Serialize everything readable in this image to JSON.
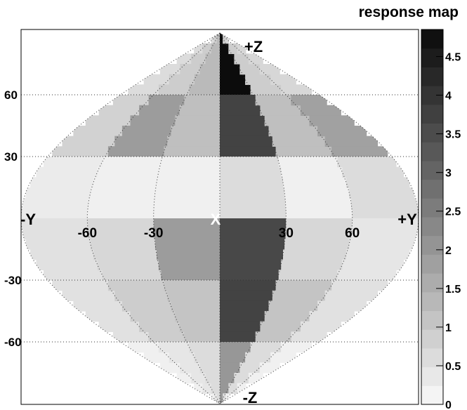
{
  "chart_data": {
    "type": "heatmap",
    "title": "response map",
    "projection": "sinusoidal (equal-area) sky map",
    "colormap": "grayscale",
    "grid": "dotted",
    "legend_position": "right",
    "colorbar": {
      "min": 0,
      "max": 4.85,
      "levels": 20,
      "tick_labels": [
        "0",
        "0.5",
        "1",
        "1.5",
        "2",
        "2.5",
        "3",
        "3.5",
        "4",
        "4.5"
      ],
      "tick_values": [
        0,
        0.5,
        1,
        1.5,
        2,
        2.5,
        3,
        3.5,
        4,
        4.5
      ]
    },
    "x_tick_labels": [
      "-60",
      "-30",
      "30",
      "60"
    ],
    "x_tick_values": [
      -60,
      -30,
      30,
      60
    ],
    "y_tick_labels": [
      "60",
      "30",
      "-30",
      "-60"
    ],
    "y_tick_values": [
      60,
      30,
      -30,
      -60
    ],
    "axis_markers": [
      {
        "label": "+Z",
        "lon": 0,
        "lat": 90
      },
      {
        "label": "-Z",
        "lon": 0,
        "lat": -90
      },
      {
        "label": "-Y",
        "lon": -90,
        "lat": 0
      },
      {
        "label": "+Y",
        "lon": 90,
        "lat": 0
      },
      {
        "label": "X",
        "lon": 0,
        "lat": 0
      }
    ],
    "bins": {
      "lon_step": 30,
      "lat_step": 30,
      "lon_centers": [
        -75,
        -45,
        -15,
        15,
        45,
        75
      ],
      "lat_centers": [
        75,
        45,
        15,
        -15,
        -45,
        -75
      ],
      "values": [
        [
          0.6,
          0.9,
          1.3,
          4.8,
          0.9,
          0.7
        ],
        [
          0.8,
          1.9,
          1.2,
          3.7,
          1.2,
          1.8
        ],
        [
          0.3,
          0.2,
          0.2,
          0.6,
          0.2,
          0.6
        ],
        [
          0.5,
          0.7,
          1.9,
          3.6,
          0.7,
          0.4
        ],
        [
          0.5,
          0.9,
          1.1,
          3.7,
          1.1,
          0.5
        ],
        [
          0.2,
          0.4,
          0.6,
          2.0,
          0.6,
          0.2
        ]
      ]
    }
  }
}
